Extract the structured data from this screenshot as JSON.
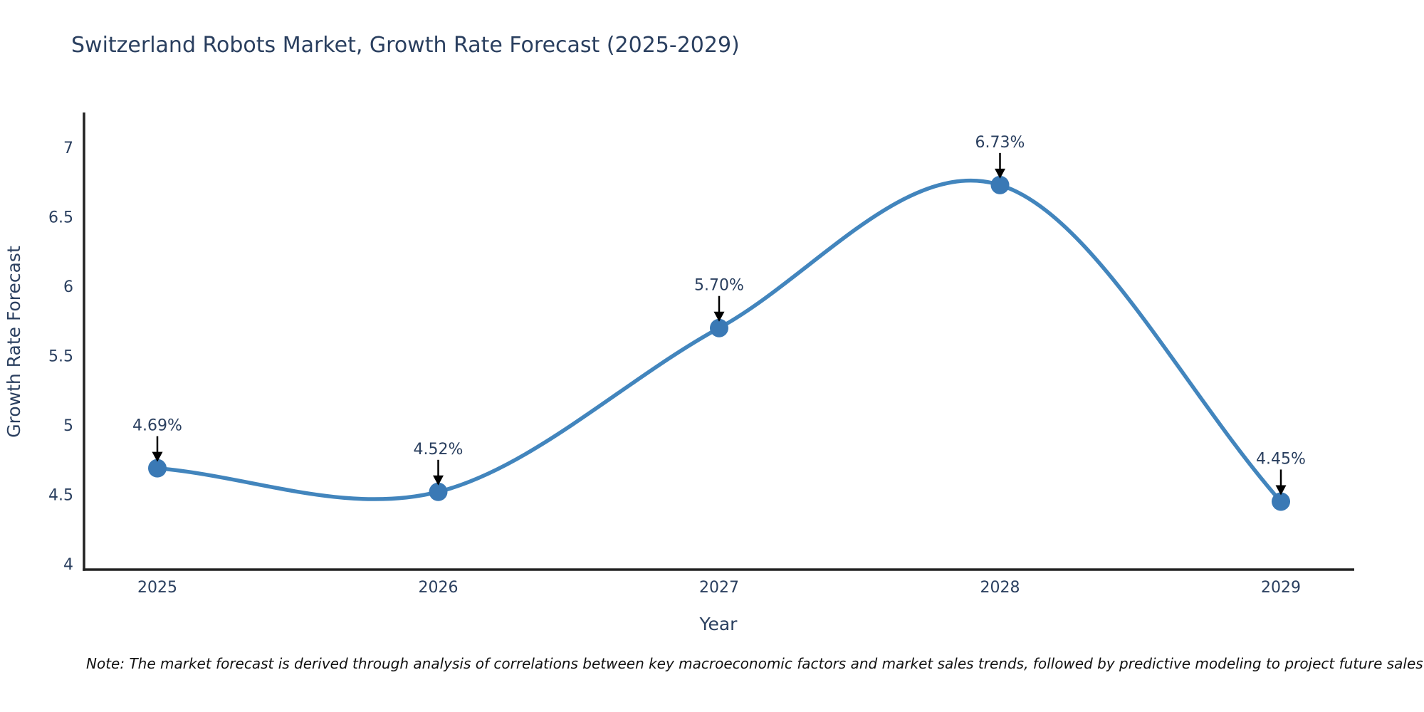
{
  "title": "Switzerland Robots Market, Growth Rate Forecast (2025-2029)",
  "note": "Note: The market forecast is derived through analysis of correlations between key macroeconomic factors and market sales trends, followed by predictive modeling to project future sales",
  "chart_data": {
    "type": "line",
    "line_shape": "spline",
    "title": "Switzerland Robots Market, Growth Rate Forecast (2025-2029)",
    "xlabel": "Year",
    "ylabel": "Growth Rate Forecast",
    "x": [
      2025,
      2026,
      2027,
      2028,
      2029
    ],
    "y": [
      4.69,
      4.52,
      5.7,
      6.73,
      4.45
    ],
    "point_labels": [
      "4.69%",
      "4.52%",
      "5.70%",
      "6.73%",
      "4.45%"
    ],
    "x_ticks": [
      "2025",
      "2026",
      "2027",
      "2028",
      "2029"
    ],
    "y_ticks": [
      "4",
      "4.5",
      "5",
      "5.5",
      "6",
      "6.5",
      "7"
    ],
    "ylim": [
      3.96,
      7.25
    ],
    "grid": false,
    "legend": "none",
    "annotation_arrow": "down",
    "colors": {
      "line": "#4285bd",
      "marker": "#3a79b5",
      "arrow": "#000000",
      "chart_text": "#2a3f5f",
      "axis_line": "#222222",
      "note_text": "#111111",
      "background": "#ffffff"
    }
  }
}
